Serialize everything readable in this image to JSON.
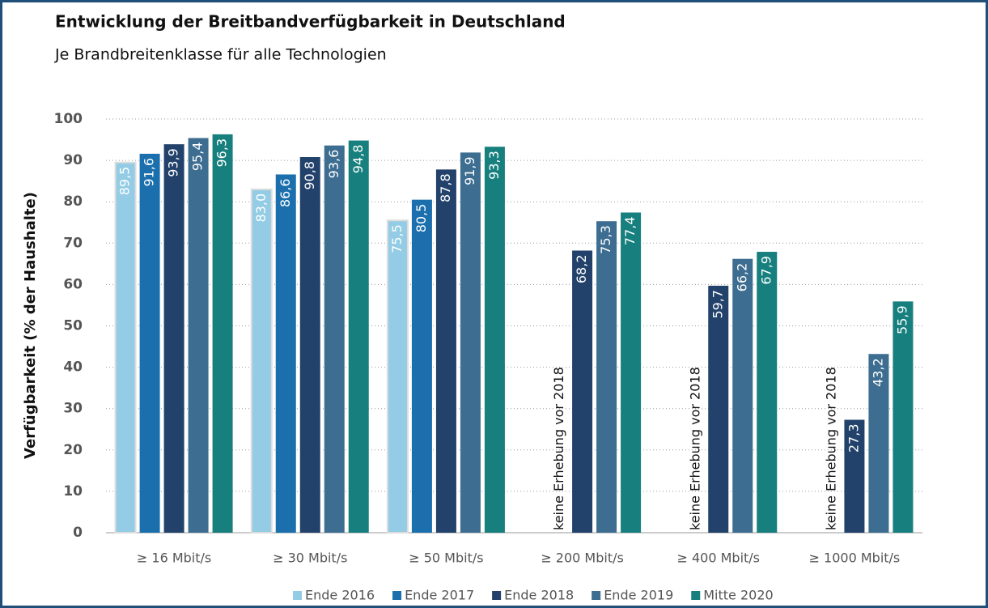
{
  "chart_data": {
    "type": "bar",
    "title": "Entwicklung der Breitbandverfügbarkeit in Deutschland",
    "subtitle": "Je Brandbreitenklasse für alle Technologien",
    "ylabel": "Verfügbarkeit (% der Haushalte)",
    "annotation": "keine Erhebung vor 2018",
    "categories": [
      "≥ 16 Mbit/s",
      "≥ 30 Mbit/s",
      "≥ 50 Mbit/s",
      "≥ 200 Mbit/s",
      "≥ 400 Mbit/s",
      "≥ 1000 Mbit/s"
    ],
    "series": [
      {
        "name": "Ende 2016",
        "color": "#93cce4",
        "values": [
          89.5,
          83.0,
          75.5,
          null,
          null,
          null
        ],
        "value_labels": [
          "89,5",
          "83,0",
          "75,5",
          null,
          null,
          null
        ]
      },
      {
        "name": "Ende 2017",
        "color": "#1b6fad",
        "values": [
          91.6,
          86.6,
          80.5,
          null,
          null,
          null
        ],
        "value_labels": [
          "91,6",
          "86,6",
          "80,5",
          null,
          null,
          null
        ]
      },
      {
        "name": "Ende 2018",
        "color": "#22426b",
        "values": [
          93.9,
          90.8,
          87.8,
          68.2,
          59.7,
          27.3
        ],
        "value_labels": [
          "93,9",
          "90,8",
          "87,8",
          "68,2",
          "59,7",
          "27,3"
        ]
      },
      {
        "name": "Ende 2019",
        "color": "#3d6d90",
        "values": [
          95.4,
          93.6,
          91.9,
          75.3,
          66.2,
          43.2
        ],
        "value_labels": [
          "95,4",
          "93,6",
          "91,9",
          "75,3",
          "66,2",
          "43,2"
        ]
      },
      {
        "name": "Mitte 2020",
        "color": "#17807e",
        "values": [
          96.3,
          94.8,
          93.3,
          77.4,
          67.9,
          55.9
        ],
        "value_labels": [
          "96,3",
          "94,8",
          "93,3",
          "77,4",
          "67,9",
          "55,9"
        ]
      }
    ],
    "ylim": [
      0,
      100
    ],
    "yticks": [
      0,
      10,
      20,
      30,
      40,
      50,
      60,
      70,
      80,
      90,
      100
    ],
    "grid": true,
    "legend": "bottom"
  }
}
